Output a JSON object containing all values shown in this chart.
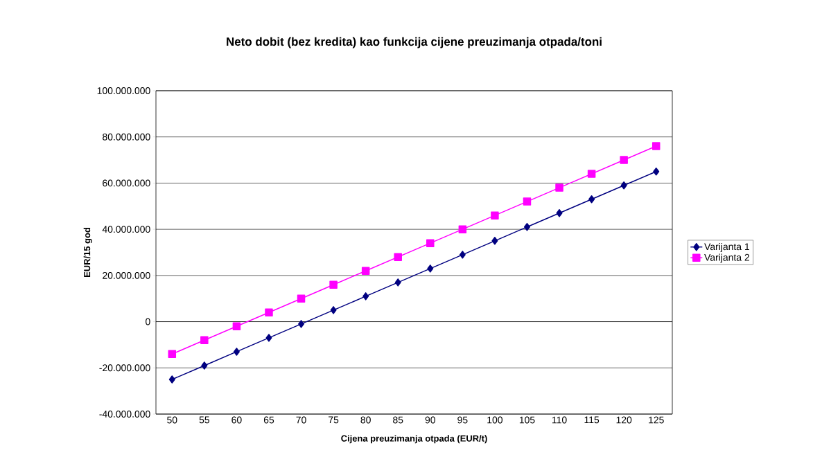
{
  "chart_data": {
    "type": "line",
    "title": "Neto dobit (bez kredita) kao funkcija cijene preuzimanja otpada/toni",
    "xlabel": "Cijena preuzimanja otpada (EUR/t)",
    "ylabel": "EUR/15 god",
    "categories": [
      "50",
      "55",
      "60",
      "65",
      "70",
      "75",
      "80",
      "85",
      "90",
      "95",
      "100",
      "105",
      "110",
      "115",
      "120",
      "125"
    ],
    "series": [
      {
        "name": "Varijanta 1",
        "color": "#000080",
        "marker": "diamond",
        "values": [
          -25000000,
          -19000000,
          -13000000,
          -7000000,
          -1000000,
          5000000,
          11000000,
          17000000,
          23000000,
          29000000,
          35000000,
          41000000,
          47000000,
          53000000,
          59000000,
          65000000
        ]
      },
      {
        "name": "Varijanta 2",
        "color": "#ff00ff",
        "marker": "square",
        "values": [
          -14000000,
          -8000000,
          -2000000,
          4000000,
          10000000,
          16000000,
          22000000,
          28000000,
          34000000,
          40000000,
          46000000,
          52000000,
          58000000,
          64000000,
          70000000,
          76000000
        ]
      }
    ],
    "ylim": [
      -40000000,
      100000000
    ],
    "yticks": [
      {
        "value": -40000000,
        "label": "-40.000.000"
      },
      {
        "value": -20000000,
        "label": "-20.000.000"
      },
      {
        "value": 0,
        "label": "0"
      },
      {
        "value": 20000000,
        "label": "20.000.000"
      },
      {
        "value": 40000000,
        "label": "40.000.000"
      },
      {
        "value": 60000000,
        "label": "60.000.000"
      },
      {
        "value": 80000000,
        "label": "80.000.000"
      },
      {
        "value": 100000000,
        "label": "100.000.000"
      }
    ],
    "grid": "y",
    "legend": "right",
    "line_style": "solid"
  }
}
